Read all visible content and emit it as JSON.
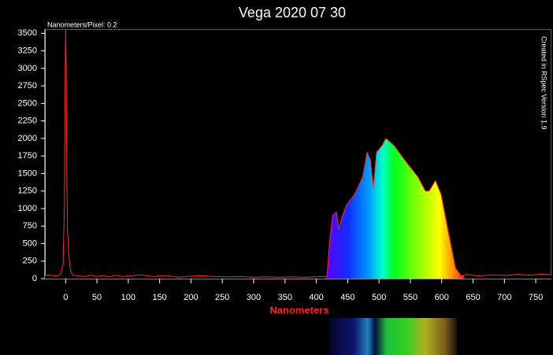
{
  "chart_data": {
    "type": "line",
    "title": "Vega 2020 07 30",
    "x_label": "Nanometers",
    "annotations": [
      "Nanometers/Pixel: 0.2",
      "Created in RSpec Version 1.9"
    ],
    "color": "#ff2a2a",
    "x": [
      -33,
      -25,
      -15,
      -8,
      -4,
      -2,
      -1,
      0,
      1,
      2,
      3,
      5,
      8,
      12,
      20,
      30,
      40,
      50,
      60,
      70,
      80,
      90,
      100,
      120,
      140,
      160,
      180,
      200,
      220,
      240,
      260,
      280,
      300,
      320,
      340,
      360,
      380,
      400,
      410,
      417,
      421,
      426,
      432,
      436,
      440,
      448,
      461,
      474,
      481,
      486,
      491,
      496,
      505,
      511,
      524,
      536,
      549,
      562,
      574,
      580,
      590,
      599,
      612,
      622,
      631,
      640,
      660,
      680,
      700,
      720,
      740,
      760,
      775
    ],
    "values": [
      40,
      50,
      35,
      60,
      200,
      1000,
      2500,
      3550,
      3000,
      1500,
      700,
      350,
      100,
      50,
      40,
      30,
      50,
      30,
      45,
      25,
      50,
      30,
      40,
      55,
      30,
      45,
      20,
      35,
      40,
      30,
      25,
      30,
      20,
      25,
      20,
      25,
      20,
      25,
      30,
      30,
      500,
      900,
      950,
      700,
      850,
      1050,
      1200,
      1450,
      1800,
      1700,
      1300,
      1800,
      1900,
      2000,
      1900,
      1750,
      1600,
      1450,
      1250,
      1250,
      1400,
      1200,
      600,
      150,
      40,
      60,
      40,
      55,
      45,
      60,
      50,
      65,
      55
    ],
    "xlim": [
      -33,
      775
    ],
    "ylim": [
      0,
      3560
    ],
    "xticks": [
      0,
      50,
      100,
      150,
      200,
      250,
      300,
      350,
      400,
      450,
      500,
      550,
      600,
      650,
      700,
      750
    ],
    "yticks": [
      0,
      250,
      500,
      750,
      1000,
      1250,
      1500,
      1750,
      2000,
      2250,
      2500,
      2750,
      3000,
      3250,
      3500
    ],
    "grid": false
  }
}
